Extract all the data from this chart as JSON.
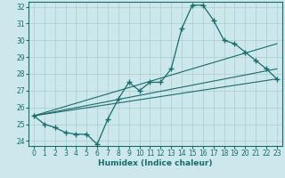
{
  "xlabel": "Humidex (Indice chaleur)",
  "xlim": [
    -0.5,
    23.5
  ],
  "ylim": [
    23.7,
    32.3
  ],
  "yticks": [
    24,
    25,
    26,
    27,
    28,
    29,
    30,
    31,
    32
  ],
  "xticks": [
    0,
    1,
    2,
    3,
    4,
    5,
    6,
    7,
    8,
    9,
    10,
    11,
    12,
    13,
    14,
    15,
    16,
    17,
    18,
    19,
    20,
    21,
    22,
    23
  ],
  "bg_color": "#cce8ec",
  "grid_color": "#aacccc",
  "line_color": "#1a6b6b",
  "series1_x": [
    0,
    1,
    2,
    3,
    4,
    5,
    6,
    7,
    8,
    9,
    10,
    11,
    12,
    13,
    14,
    15,
    16,
    17,
    18,
    19,
    20,
    21,
    22,
    23
  ],
  "series1_y": [
    25.5,
    25.0,
    24.8,
    24.5,
    24.4,
    24.4,
    23.8,
    25.3,
    26.5,
    27.5,
    27.0,
    27.5,
    27.5,
    28.3,
    30.7,
    32.1,
    32.1,
    31.2,
    30.0,
    29.8,
    29.3,
    28.8,
    28.3,
    27.7
  ],
  "trend1_x": [
    0,
    23
  ],
  "trend1_y": [
    25.5,
    27.7
  ],
  "trend2_x": [
    0,
    23
  ],
  "trend2_y": [
    25.5,
    28.3
  ],
  "trend3_x": [
    0,
    23
  ],
  "trend3_y": [
    25.5,
    29.8
  ]
}
